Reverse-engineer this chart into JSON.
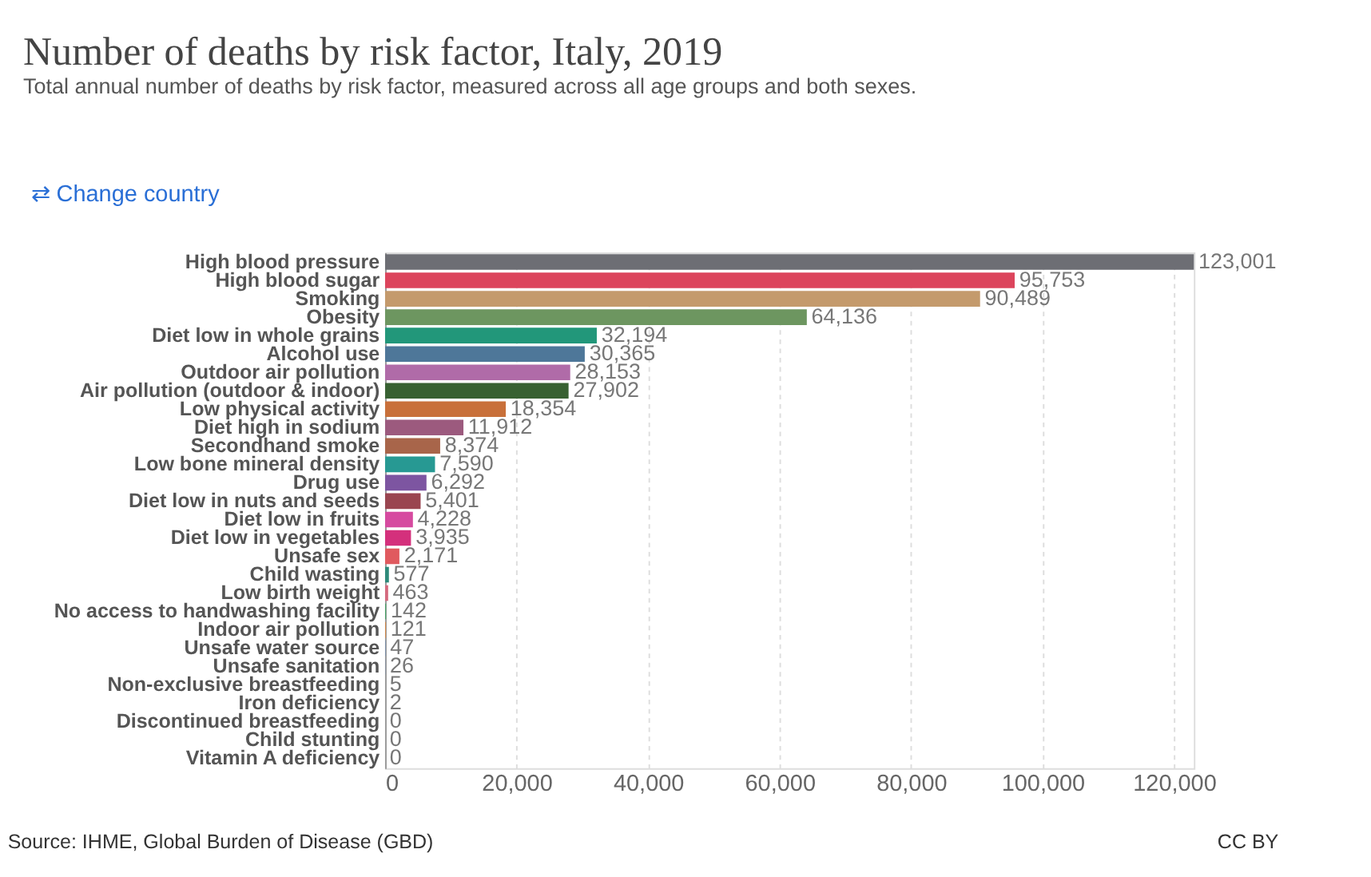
{
  "chart_data": {
    "type": "bar",
    "orientation": "horizontal",
    "title": "Number of deaths by risk factor, Italy, 2019",
    "subtitle": "Total annual number of deaths by risk factor, measured across all age groups and both sexes.",
    "categories": [
      "High blood pressure",
      "High blood sugar",
      "Smoking",
      "Obesity",
      "Diet low in whole grains",
      "Alcohol use",
      "Outdoor air pollution",
      "Air pollution (outdoor & indoor)",
      "Low physical activity",
      "Diet high in sodium",
      "Secondhand smoke",
      "Low bone mineral density",
      "Drug use",
      "Diet low in nuts and seeds",
      "Diet low in fruits",
      "Diet low in vegetables",
      "Unsafe sex",
      "Child wasting",
      "Low birth weight",
      "No access to handwashing facility",
      "Indoor air pollution",
      "Unsafe water source",
      "Unsafe sanitation",
      "Non-exclusive breastfeeding",
      "Iron deficiency",
      "Discontinued breastfeeding",
      "Child stunting",
      "Vitamin A deficiency"
    ],
    "values": [
      123001,
      95753,
      90489,
      64136,
      32194,
      30365,
      28153,
      27902,
      18354,
      11912,
      8374,
      7590,
      6292,
      5401,
      4228,
      3935,
      2171,
      577,
      463,
      142,
      121,
      47,
      26,
      5,
      2,
      0,
      0,
      0
    ],
    "colors": [
      "#6d6e74",
      "#dc445c",
      "#c49a6c",
      "#6d9660",
      "#22977a",
      "#4e7799",
      "#b06ba8",
      "#386132",
      "#c8703a",
      "#9c5a7e",
      "#a8654a",
      "#279993",
      "#7d55a1",
      "#9a4550",
      "#d64aa0",
      "#d4307c",
      "#e05a5f",
      "#2e8a7a",
      "#d46a7e",
      "#4aa66a",
      "#d98c4c",
      "#5a8ac8",
      "#6a8ac8",
      "#9aa0a6",
      "#9aa0a6",
      "#9aa0a6",
      "#9aa0a6",
      "#9aa0a6"
    ],
    "xlim": [
      0,
      123001
    ],
    "xticks": [
      {
        "value": 0,
        "label": "0"
      },
      {
        "value": 20000,
        "label": "20,000"
      },
      {
        "value": 40000,
        "label": "40,000"
      },
      {
        "value": 60000,
        "label": "60,000"
      },
      {
        "value": 80000,
        "label": "80,000"
      },
      {
        "value": 100000,
        "label": "100,000"
      },
      {
        "value": 120000,
        "label": "120,000"
      }
    ],
    "grid": "x",
    "value_labels": [
      "123,001",
      "95,753",
      "90,489",
      "64,136",
      "32,194",
      "30,365",
      "28,153",
      "27,902",
      "18,354",
      "11,912",
      "8,374",
      "7,590",
      "6,292",
      "5,401",
      "4,228",
      "3,935",
      "2,171",
      "577",
      "463",
      "142",
      "121",
      "47",
      "26",
      "5",
      "2",
      "0",
      "0",
      "0"
    ],
    "annotations": [
      "⇄ Change country",
      "Source: IHME, Global Burden of Disease (GBD)",
      "CC BY"
    ]
  }
}
